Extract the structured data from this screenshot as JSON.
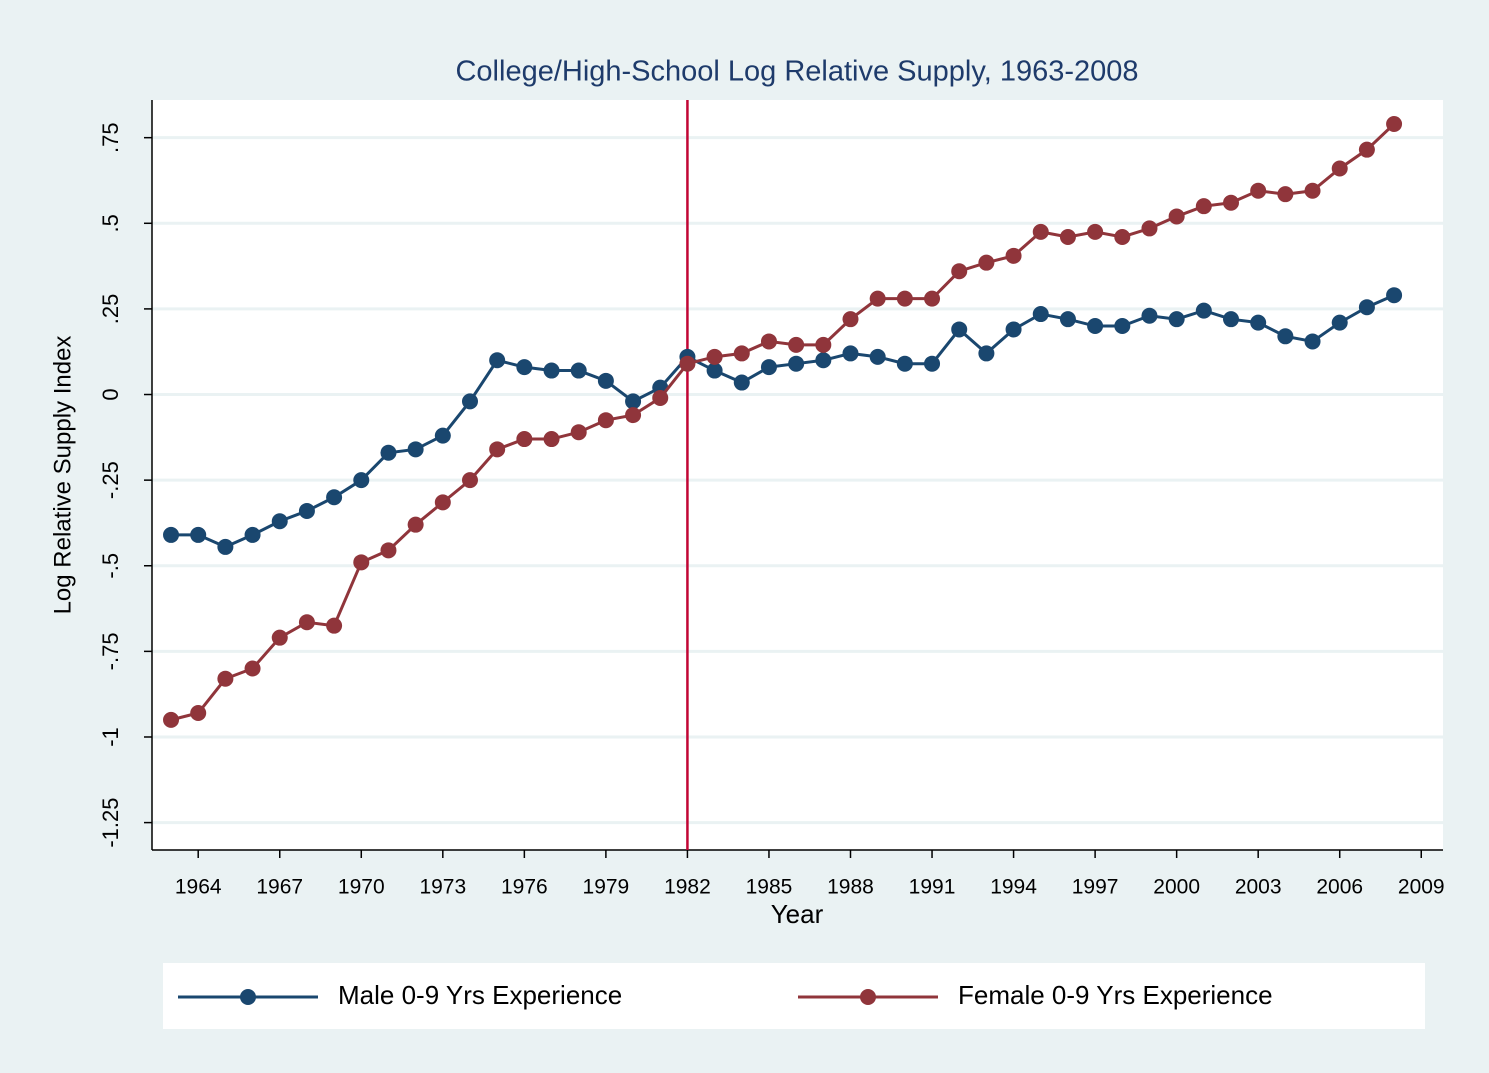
{
  "chart_data": {
    "type": "line",
    "title": "College/High-School Log Relative Supply, 1963-2008",
    "xlabel": "Year",
    "ylabel": "Log Relative Supply Index",
    "x": [
      1963,
      1964,
      1965,
      1966,
      1967,
      1968,
      1969,
      1970,
      1971,
      1972,
      1973,
      1974,
      1975,
      1976,
      1977,
      1978,
      1979,
      1980,
      1981,
      1982,
      1983,
      1984,
      1985,
      1986,
      1987,
      1988,
      1989,
      1990,
      1991,
      1992,
      1993,
      1994,
      1995,
      1996,
      1997,
      1998,
      1999,
      2000,
      2001,
      2002,
      2003,
      2004,
      2005,
      2006,
      2007,
      2008
    ],
    "series": [
      {
        "name": "Male 0-9 Yrs Experience",
        "color": "#1a476f",
        "values": [
          -0.41,
          -0.41,
          -0.445,
          -0.41,
          -0.37,
          -0.34,
          -0.3,
          -0.25,
          -0.17,
          -0.16,
          -0.12,
          -0.02,
          0.1,
          0.08,
          0.07,
          0.07,
          0.04,
          -0.02,
          0.02,
          0.11,
          0.07,
          0.035,
          0.08,
          0.09,
          0.1,
          0.12,
          0.11,
          0.09,
          0.09,
          0.19,
          0.12,
          0.19,
          0.235,
          0.22,
          0.2,
          0.2,
          0.23,
          0.22,
          0.245,
          0.22,
          0.21,
          0.17,
          0.155,
          0.21,
          0.255,
          0.29
        ]
      },
      {
        "name": "Female 0-9 Yrs Experience",
        "color": "#90353b",
        "values": [
          -0.95,
          -0.93,
          -0.83,
          -0.8,
          -0.71,
          -0.665,
          -0.675,
          -0.49,
          -0.455,
          -0.38,
          -0.315,
          -0.25,
          -0.16,
          -0.13,
          -0.13,
          -0.11,
          -0.075,
          -0.06,
          -0.01,
          0.09,
          0.11,
          0.12,
          0.155,
          0.145,
          0.145,
          0.22,
          0.28,
          0.28,
          0.28,
          0.36,
          0.385,
          0.405,
          0.475,
          0.46,
          0.475,
          0.46,
          0.485,
          0.52,
          0.55,
          0.56,
          0.595,
          0.585,
          0.595,
          0.66,
          0.715,
          0.79
        ]
      }
    ],
    "vline": 1982,
    "vline_color": "#c10534",
    "xlim": [
      1962.3,
      2009.8
    ],
    "xticks": [
      1964,
      1967,
      1970,
      1973,
      1976,
      1979,
      1982,
      1985,
      1988,
      1991,
      1994,
      1997,
      2000,
      2003,
      2006,
      2009
    ],
    "ylim": [
      -1.33,
      0.86
    ],
    "yticks": [
      {
        "value": -1.25,
        "label": "-1.25"
      },
      -1,
      {
        "value": -0.75,
        "label": "-.75"
      },
      {
        "value": -0.5,
        "label": "-.5"
      },
      {
        "value": -0.25,
        "label": "-.25"
      },
      0,
      {
        "value": 0.25,
        "label": ".25"
      },
      {
        "value": 0.5,
        "label": ".5"
      },
      {
        "value": 0.75,
        "label": ".75"
      }
    ],
    "grid": true,
    "legend": "bottom"
  }
}
